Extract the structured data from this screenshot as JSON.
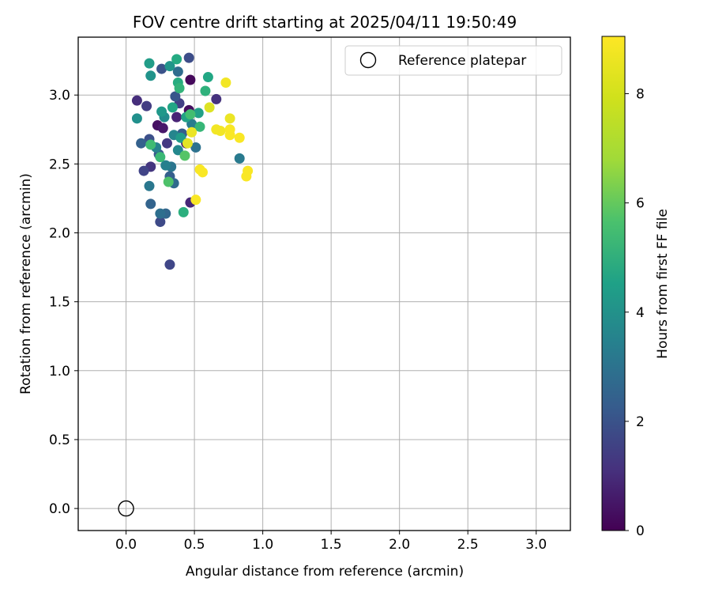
{
  "chart_data": {
    "type": "scatter",
    "title": "FOV centre drift starting at 2025/04/11 19:50:49",
    "xlabel": "Angular distance from reference (arcmin)",
    "ylabel": "Rotation from reference (arcmin)",
    "xlim": [
      -0.35,
      3.25
    ],
    "ylim": [
      -0.16,
      3.42
    ],
    "x_ticks": [
      0.0,
      0.5,
      1.0,
      1.5,
      2.0,
      2.5,
      3.0
    ],
    "x_tick_labels": [
      "0.0",
      "0.5",
      "1.0",
      "1.5",
      "2.0",
      "2.5",
      "3.0"
    ],
    "y_ticks": [
      0.0,
      0.5,
      1.0,
      1.5,
      2.0,
      2.5,
      3.0
    ],
    "y_tick_labels": [
      "0.0",
      "0.5",
      "1.0",
      "1.5",
      "2.0",
      "2.5",
      "3.0"
    ],
    "grid": true,
    "legend": {
      "position": "top-right",
      "entries": [
        "Reference platepar"
      ]
    },
    "reference_point": {
      "x": 0.0,
      "y": 0.0
    },
    "colorbar": {
      "label": "Hours from first FF file",
      "colormap": "viridis",
      "range": [
        0,
        9.05
      ],
      "ticks": [
        0,
        2,
        4,
        6,
        8
      ],
      "tick_labels": [
        "0",
        "2",
        "4",
        "6",
        "8"
      ]
    },
    "points_format": [
      "angular_distance_arcmin",
      "rotation_arcmin",
      "hours"
    ],
    "points": [
      [
        0.47,
        3.11,
        0.2
      ],
      [
        0.46,
        2.89,
        0.3
      ],
      [
        0.23,
        2.78,
        0.4
      ],
      [
        0.27,
        2.76,
        0.6
      ],
      [
        0.44,
        2.65,
        0.7
      ],
      [
        0.37,
        2.84,
        0.9
      ],
      [
        0.47,
        2.22,
        1.0
      ],
      [
        0.08,
        2.96,
        1.2
      ],
      [
        0.66,
        2.97,
        1.3
      ],
      [
        0.18,
        2.48,
        1.4
      ],
      [
        0.3,
        2.65,
        1.5
      ],
      [
        0.15,
        2.92,
        1.6
      ],
      [
        0.39,
        2.94,
        1.7
      ],
      [
        0.13,
        2.45,
        1.8
      ],
      [
        0.32,
        1.77,
        1.9
      ],
      [
        0.25,
        2.08,
        2.0
      ],
      [
        0.46,
        3.27,
        2.1
      ],
      [
        0.17,
        2.68,
        2.2
      ],
      [
        0.26,
        3.19,
        2.3
      ],
      [
        0.36,
        2.99,
        2.4
      ],
      [
        0.24,
        2.57,
        2.5
      ],
      [
        0.41,
        2.72,
        2.6
      ],
      [
        0.32,
        2.41,
        2.7
      ],
      [
        0.11,
        2.65,
        2.8
      ],
      [
        0.18,
        2.21,
        2.9
      ],
      [
        0.29,
        2.14,
        3.0
      ],
      [
        0.35,
        2.36,
        3.1
      ],
      [
        0.38,
        3.17,
        3.2
      ],
      [
        0.25,
        2.14,
        3.3
      ],
      [
        0.51,
        2.62,
        3.4
      ],
      [
        0.33,
        2.48,
        3.5
      ],
      [
        0.17,
        2.34,
        3.6
      ],
      [
        0.83,
        2.54,
        3.7
      ],
      [
        0.48,
        2.79,
        3.8
      ],
      [
        0.29,
        2.49,
        3.9
      ],
      [
        0.22,
        2.62,
        4.0
      ],
      [
        0.35,
        2.71,
        4.1
      ],
      [
        0.38,
        2.6,
        4.2
      ],
      [
        0.28,
        2.84,
        4.3
      ],
      [
        0.08,
        2.83,
        4.5
      ],
      [
        0.18,
        3.14,
        4.6
      ],
      [
        0.32,
        3.21,
        4.7
      ],
      [
        0.26,
        2.88,
        4.8
      ],
      [
        0.4,
        2.69,
        4.9
      ],
      [
        0.17,
        3.23,
        5.0
      ],
      [
        0.53,
        2.87,
        5.1
      ],
      [
        0.44,
        2.84,
        5.2
      ],
      [
        0.34,
        2.91,
        5.3
      ],
      [
        0.6,
        3.13,
        5.4
      ],
      [
        0.37,
        3.26,
        5.5
      ],
      [
        0.38,
        3.09,
        5.6
      ],
      [
        0.42,
        2.15,
        5.7
      ],
      [
        0.58,
        3.03,
        5.8
      ],
      [
        0.39,
        3.05,
        5.9
      ],
      [
        0.54,
        2.77,
        6.0
      ],
      [
        0.25,
        2.55,
        6.1
      ],
      [
        0.18,
        2.64,
        6.2
      ],
      [
        0.47,
        2.86,
        6.3
      ],
      [
        0.31,
        2.37,
        6.5
      ],
      [
        0.43,
        2.56,
        6.6
      ],
      [
        0.48,
        2.73,
        8.8
      ],
      [
        0.73,
        3.09,
        8.9
      ],
      [
        0.76,
        2.83,
        8.8
      ],
      [
        0.66,
        2.75,
        8.9
      ],
      [
        0.69,
        2.74,
        8.9
      ],
      [
        0.76,
        2.71,
        9.0
      ],
      [
        0.76,
        2.75,
        9.0
      ],
      [
        0.83,
        2.69,
        9.0
      ],
      [
        0.54,
        2.46,
        9.0
      ],
      [
        0.56,
        2.44,
        9.0
      ],
      [
        0.88,
        2.41,
        9.0
      ],
      [
        0.89,
        2.45,
        9.0
      ],
      [
        0.51,
        2.24,
        9.0
      ],
      [
        0.61,
        2.91,
        8.6
      ],
      [
        0.45,
        2.65,
        8.7
      ]
    ]
  }
}
